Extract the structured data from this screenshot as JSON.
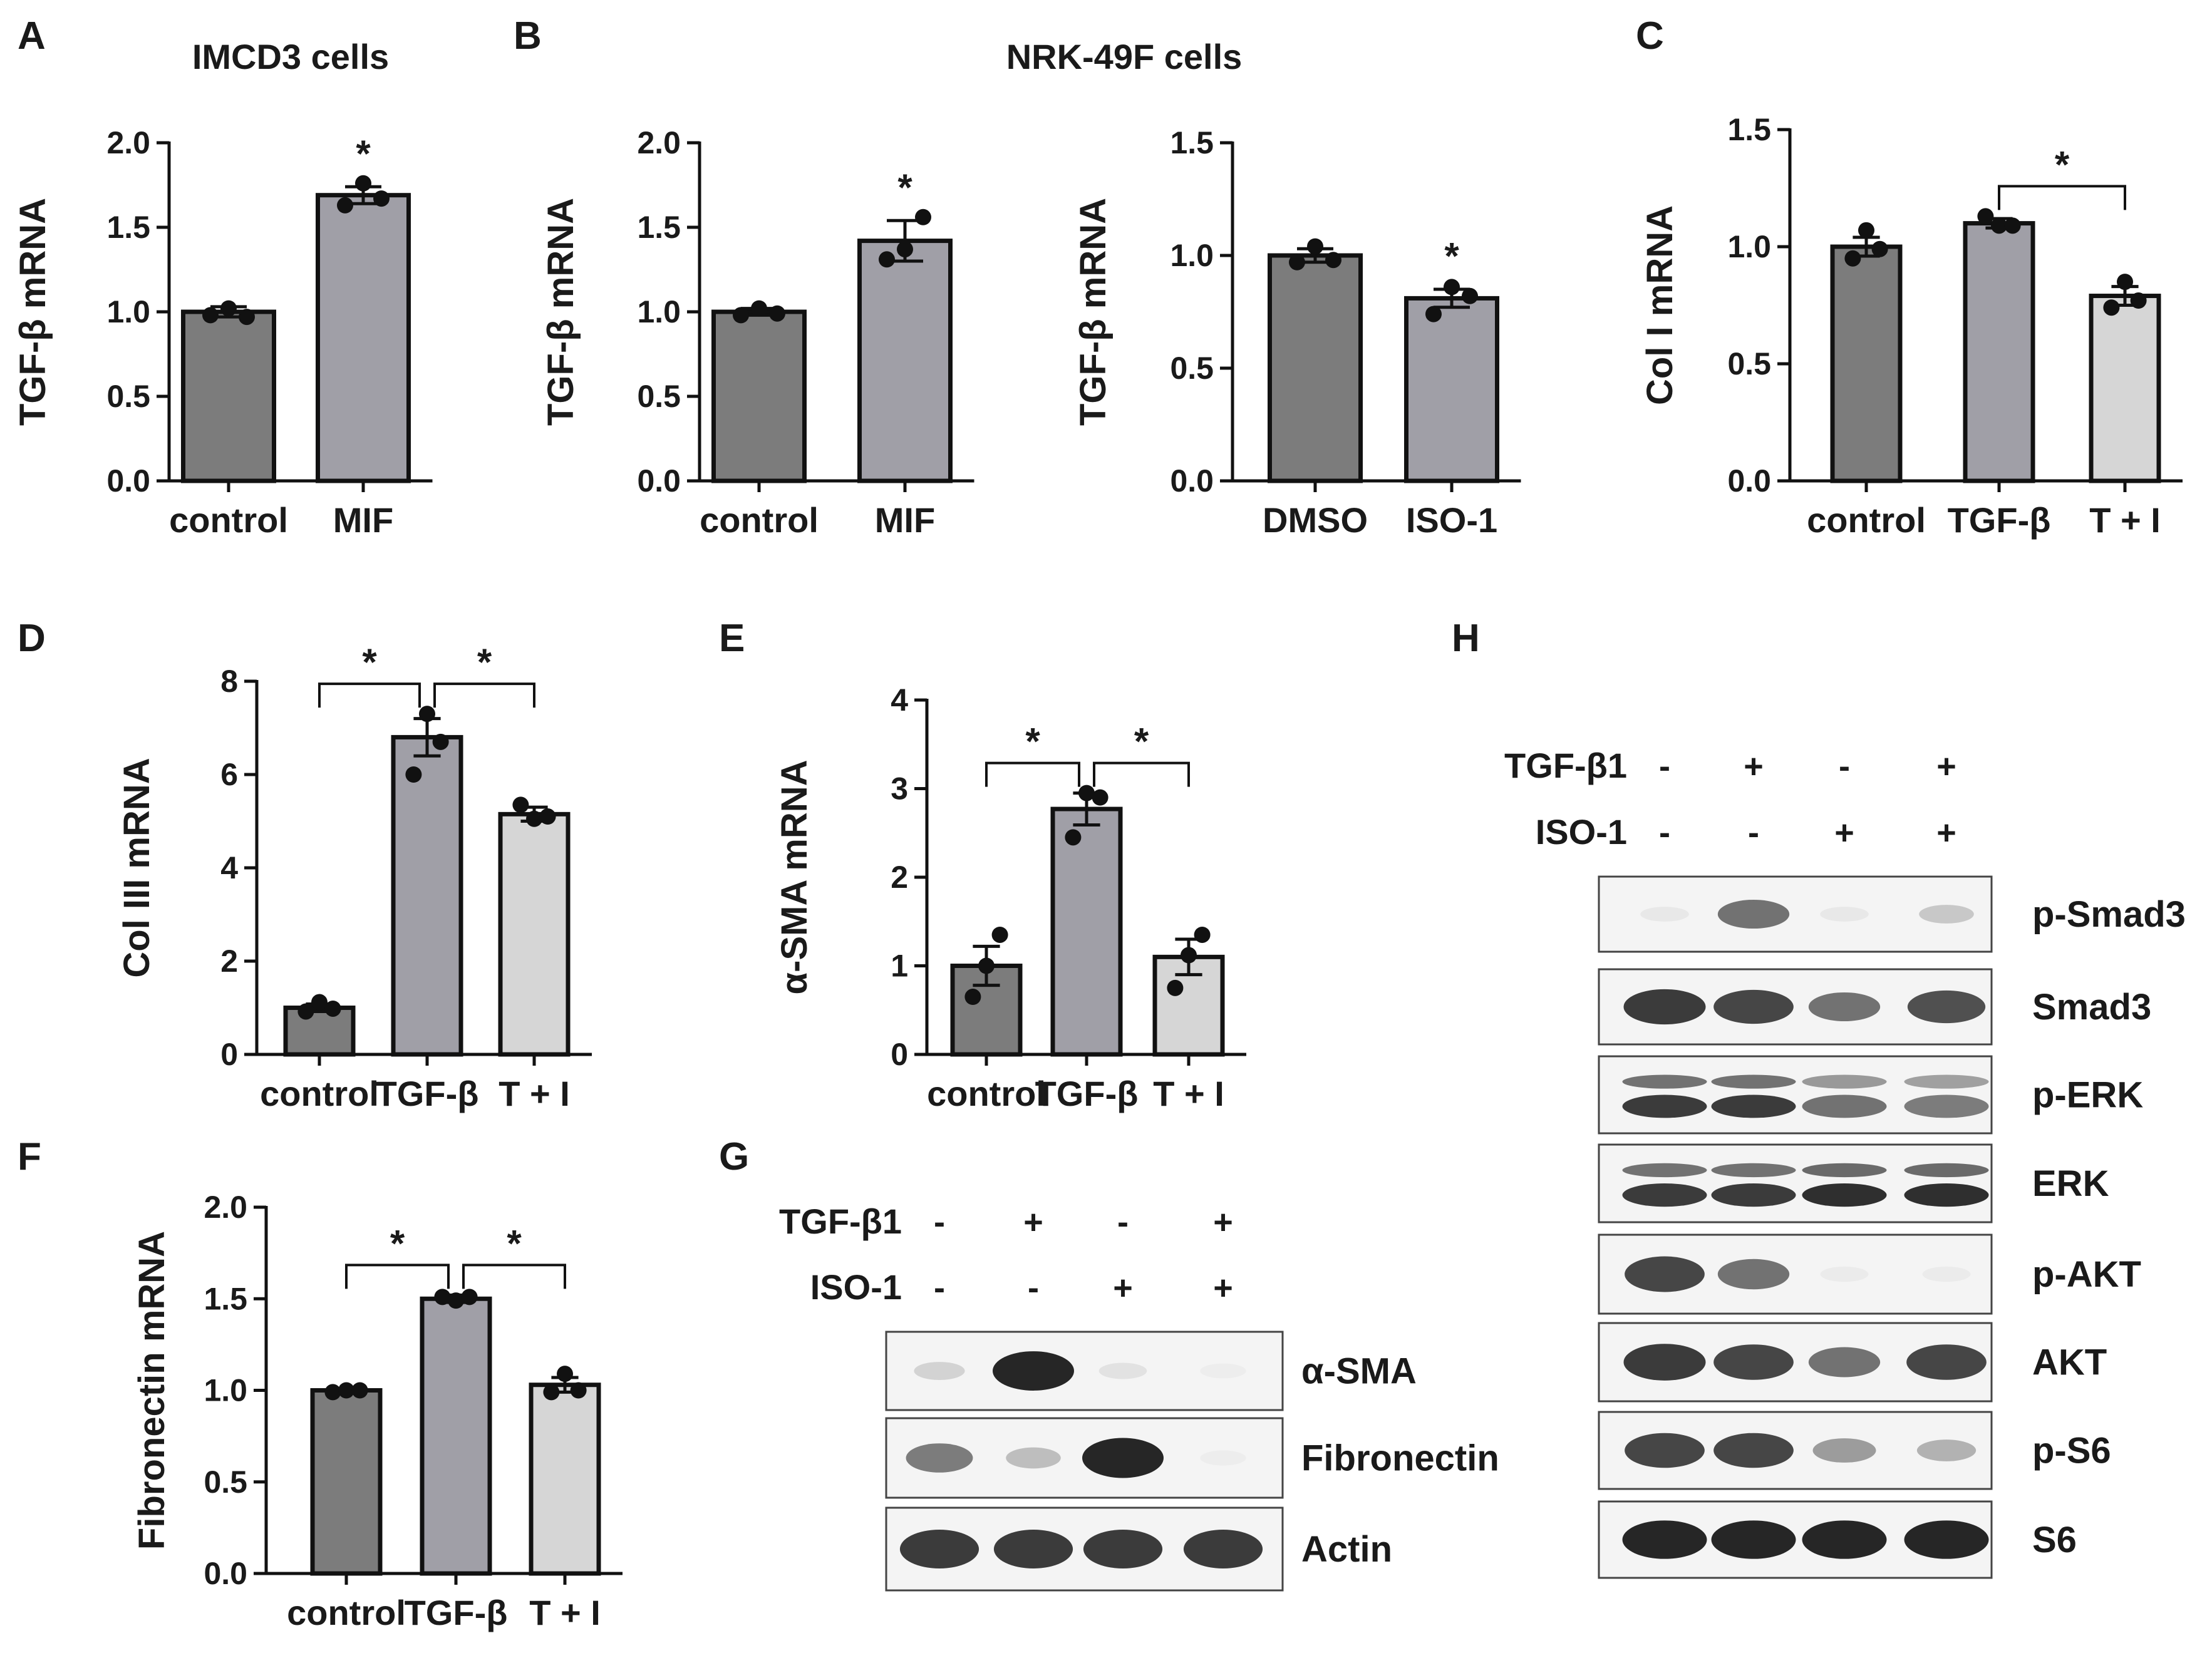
{
  "panels": {
    "A": "A",
    "B": "B",
    "C": "C",
    "D": "D",
    "E": "E",
    "F": "F",
    "G": "G",
    "H": "H"
  },
  "colors": {
    "dark": "#7c7c7c",
    "mid": "#a09fa7",
    "light": "#d6d6d6",
    "ink": "#111111"
  },
  "chart_data": [
    {
      "id": "A",
      "type": "bar",
      "title": "IMCD3 cells",
      "ylabel": "TGF-β mRNA",
      "categories": [
        "control",
        "MIF"
      ],
      "values": [
        1.0,
        1.69
      ],
      "errors": [
        0.03,
        0.05
      ],
      "points": [
        [
          0.98,
          1.02,
          0.97
        ],
        [
          1.63,
          1.76,
          1.67
        ]
      ],
      "ylim": [
        0,
        2.0
      ],
      "yticks": [
        "0.0",
        "0.5",
        "1.0",
        "1.5",
        "2.0"
      ],
      "fills": [
        "dark",
        "mid"
      ],
      "stars": [
        {
          "bar": 1,
          "text": "*"
        }
      ],
      "brackets": []
    },
    {
      "id": "B1",
      "type": "bar",
      "title": "NRK-49F cells",
      "ylabel": "TGF-β mRNA",
      "categories": [
        "control",
        "MIF"
      ],
      "values": [
        1.0,
        1.42
      ],
      "errors": [
        0.02,
        0.12
      ],
      "points": [
        [
          0.98,
          1.02,
          0.99
        ],
        [
          1.31,
          1.37,
          1.56
        ]
      ],
      "ylim": [
        0,
        2.0
      ],
      "yticks": [
        "0.0",
        "0.5",
        "1.0",
        "1.5",
        "2.0"
      ],
      "fills": [
        "dark",
        "mid"
      ],
      "stars": [
        {
          "bar": 1,
          "text": "*"
        }
      ],
      "brackets": []
    },
    {
      "id": "B2",
      "type": "bar",
      "title": "",
      "ylabel": "TGF-β mRNA",
      "categories": [
        "DMSO",
        "ISO-1"
      ],
      "values": [
        1.0,
        0.81
      ],
      "errors": [
        0.03,
        0.04
      ],
      "points": [
        [
          0.97,
          1.04,
          0.98
        ],
        [
          0.74,
          0.86,
          0.82
        ]
      ],
      "ylim": [
        0,
        1.5
      ],
      "yticks": [
        "0.0",
        "0.5",
        "1.0",
        "1.5"
      ],
      "fills": [
        "dark",
        "mid"
      ],
      "stars": [
        {
          "bar": 1,
          "text": "*"
        }
      ],
      "brackets": []
    },
    {
      "id": "C",
      "type": "bar",
      "title": "",
      "ylabel": "Col I mRNA",
      "categories": [
        "control",
        "TGF-β",
        "T + I"
      ],
      "values": [
        1.0,
        1.1,
        0.79
      ],
      "errors": [
        0.04,
        0.02,
        0.04
      ],
      "points": [
        [
          0.95,
          1.07,
          0.99
        ],
        [
          1.13,
          1.09,
          1.09
        ],
        [
          0.74,
          0.85,
          0.77
        ]
      ],
      "ylim": [
        0,
        1.5
      ],
      "yticks": [
        "0.0",
        "0.5",
        "1.0",
        "1.5"
      ],
      "fills": [
        "dark",
        "mid",
        "light"
      ],
      "stars": [],
      "brackets": [
        {
          "from": 1,
          "to": 2,
          "text": "*"
        }
      ]
    },
    {
      "id": "D",
      "type": "bar",
      "title": "",
      "ylabel": "Col III mRNA",
      "categories": [
        "control",
        "TGF-β",
        "T + I"
      ],
      "values": [
        1.0,
        6.8,
        5.15
      ],
      "errors": [
        0.08,
        0.4,
        0.15
      ],
      "points": [
        [
          0.92,
          1.12,
          0.98
        ],
        [
          6.0,
          7.3,
          6.7
        ],
        [
          5.35,
          5.05,
          5.1
        ]
      ],
      "ylim": [
        0,
        8
      ],
      "yticks": [
        "0",
        "2",
        "4",
        "6",
        "8"
      ],
      "fills": [
        "dark",
        "mid",
        "light"
      ],
      "stars": [],
      "brackets": [
        {
          "from": 0,
          "to": 1,
          "text": "*"
        },
        {
          "from": 1,
          "to": 2,
          "text": "*"
        }
      ]
    },
    {
      "id": "E",
      "type": "bar",
      "title": "",
      "ylabel": "α-SMA mRNA",
      "categories": [
        "control",
        "TGF-β",
        "T + I"
      ],
      "values": [
        1.0,
        2.77,
        1.1
      ],
      "errors": [
        0.22,
        0.18,
        0.2
      ],
      "points": [
        [
          0.65,
          1.0,
          1.35
        ],
        [
          2.45,
          2.95,
          2.9
        ],
        [
          0.75,
          1.12,
          1.35
        ]
      ],
      "ylim": [
        0,
        4
      ],
      "yticks": [
        "0",
        "1",
        "2",
        "3",
        "4"
      ],
      "fills": [
        "dark",
        "mid",
        "light"
      ],
      "stars": [],
      "brackets": [
        {
          "from": 0,
          "to": 1,
          "text": "*"
        },
        {
          "from": 1,
          "to": 2,
          "text": "*"
        }
      ]
    },
    {
      "id": "F",
      "type": "bar",
      "title": "",
      "ylabel": "Fibronectin mRNA",
      "categories": [
        "control",
        "TGF-β",
        "T + I"
      ],
      "values": [
        1.0,
        1.5,
        1.03
      ],
      "errors": [
        0.01,
        0.02,
        0.04
      ],
      "points": [
        [
          0.99,
          1.0,
          1.0
        ],
        [
          1.51,
          1.49,
          1.51
        ],
        [
          0.99,
          1.09,
          1.0
        ]
      ],
      "ylim": [
        0,
        2.0
      ],
      "yticks": [
        "0.0",
        "0.5",
        "1.0",
        "1.5",
        "2.0"
      ],
      "fills": [
        "dark",
        "mid",
        "light"
      ],
      "stars": [],
      "brackets": [
        {
          "from": 0,
          "to": 1,
          "text": "*"
        },
        {
          "from": 1,
          "to": 2,
          "text": "*"
        }
      ]
    }
  ],
  "blots": [
    {
      "id": "G",
      "conditions": [
        {
          "label": "TGF-β1",
          "signs": [
            "-",
            "+",
            "-",
            "+"
          ]
        },
        {
          "label": "ISO-1",
          "signs": [
            "-",
            "-",
            "+",
            "+"
          ]
        }
      ],
      "rows": [
        {
          "label": "α-SMA",
          "bands": [
            0.15,
            0.95,
            0.08,
            0.03
          ],
          "double": false
        },
        {
          "label": "Fibronectin",
          "bands": [
            0.55,
            0.25,
            0.95,
            0.03
          ],
          "double": false
        },
        {
          "label": "Actin",
          "bands": [
            0.85,
            0.85,
            0.85,
            0.85
          ],
          "double": false
        }
      ]
    },
    {
      "id": "H",
      "conditions": [
        {
          "label": "TGF-β1",
          "signs": [
            "-",
            "+",
            "-",
            "+"
          ]
        },
        {
          "label": "ISO-1",
          "signs": [
            "-",
            "-",
            "+",
            "+"
          ]
        }
      ],
      "rows": [
        {
          "label": "p-Smad3",
          "bands": [
            0.05,
            0.6,
            0.05,
            0.2
          ],
          "double": false
        },
        {
          "label": "Smad3",
          "bands": [
            0.85,
            0.8,
            0.6,
            0.75
          ],
          "double": false
        },
        {
          "label": "p-ERK",
          "bands": [
            0.85,
            0.85,
            0.6,
            0.55
          ],
          "double": true
        },
        {
          "label": "ERK",
          "bands": [
            0.85,
            0.85,
            0.9,
            0.9
          ],
          "double": true
        },
        {
          "label": "p-AKT",
          "bands": [
            0.8,
            0.6,
            0.04,
            0.04
          ],
          "double": false
        },
        {
          "label": "AKT",
          "bands": [
            0.85,
            0.8,
            0.6,
            0.8
          ],
          "double": false
        },
        {
          "label": "p-S6",
          "bands": [
            0.8,
            0.8,
            0.4,
            0.3
          ],
          "double": false
        },
        {
          "label": "S6",
          "bands": [
            0.95,
            0.95,
            0.95,
            0.95
          ],
          "double": false
        }
      ]
    }
  ]
}
